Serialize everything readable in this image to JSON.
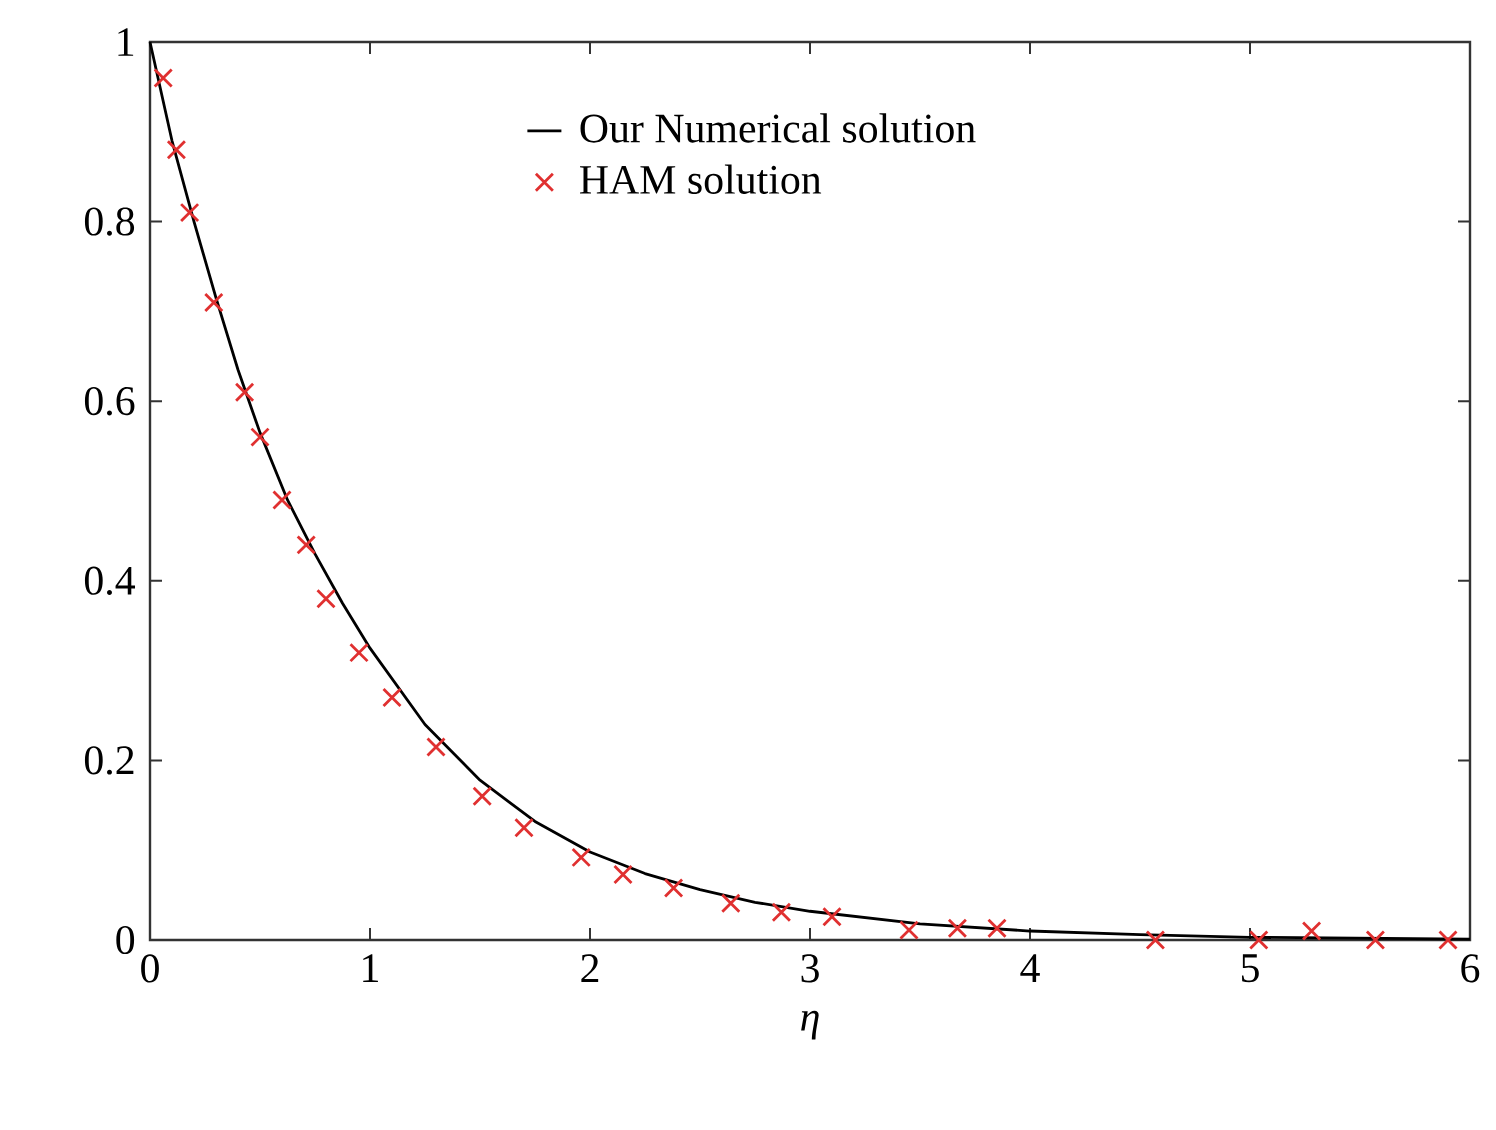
{
  "chart_data": {
    "type": "line",
    "xlabel": "η",
    "xlim": [
      0,
      6
    ],
    "ylim": [
      0,
      1
    ],
    "xticks": [
      0,
      1,
      2,
      3,
      4,
      5,
      6
    ],
    "yticks": [
      0,
      0.2,
      0.4,
      0.6,
      0.8,
      1
    ],
    "grid": false,
    "legend": "top",
    "series": [
      {
        "name": "Our Numerical solution",
        "color": "#000000",
        "line_style": "solid",
        "x": [
          0,
          0.1,
          0.2,
          0.3,
          0.4,
          0.5,
          0.625,
          0.75,
          0.875,
          1,
          1.25,
          1.5,
          1.75,
          2,
          2.25,
          2.5,
          2.75,
          3,
          3.5,
          4,
          4.5,
          5,
          5.5,
          6
        ],
        "values": [
          1,
          0.89,
          0.8,
          0.715,
          0.635,
          0.565,
          0.49,
          0.43,
          0.375,
          0.325,
          0.24,
          0.178,
          0.132,
          0.098,
          0.074,
          0.056,
          0.042,
          0.032,
          0.018,
          0.01,
          0.006,
          0.003,
          0.002,
          0.001
        ]
      },
      {
        "name": "HAM solution",
        "type": "scatter",
        "color": "#e03030",
        "marker": "cross",
        "x": [
          0.06,
          0.12,
          0.18,
          0.29,
          0.43,
          0.5,
          0.6,
          0.71,
          0.8,
          0.95,
          1.1,
          1.3,
          1.51,
          1.7,
          1.96,
          2.15,
          2.38,
          2.64,
          2.87,
          3.1,
          3.45,
          3.67,
          3.85,
          4.57,
          5.04,
          5.28,
          5.57,
          5.9
        ],
        "values": [
          0.96,
          0.88,
          0.81,
          0.71,
          0.61,
          0.56,
          0.49,
          0.44,
          0.38,
          0.32,
          0.27,
          0.215,
          0.16,
          0.125,
          0.092,
          0.073,
          0.058,
          0.041,
          0.031,
          0.026,
          0.011,
          0.013,
          0.013,
          0,
          0,
          0.01,
          0,
          0
        ]
      }
    ]
  }
}
